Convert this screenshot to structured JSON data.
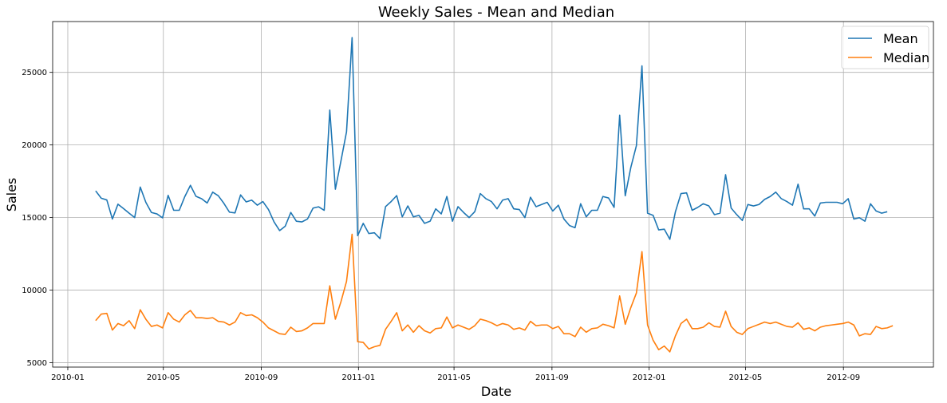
{
  "chart_data": {
    "type": "line",
    "title": "Weekly Sales - Mean and Median",
    "xlabel": "Date",
    "ylabel": "Sales",
    "grid": true,
    "legend_position": "top-right",
    "xlim": [
      "2009-12-13",
      "2012-12-23"
    ],
    "ylim": [
      4700,
      28500
    ],
    "x_ticks": [
      "2010-01",
      "2010-05",
      "2010-09",
      "2011-01",
      "2011-05",
      "2011-09",
      "2012-01",
      "2012-05",
      "2012-09"
    ],
    "y_ticks": [
      5000,
      10000,
      15000,
      20000,
      25000
    ],
    "x_start": "2010-02-05",
    "x_step_days": 7,
    "series": [
      {
        "name": "Mean",
        "color": "#1f77b4",
        "values": [
          16837,
          16330,
          16212,
          14900,
          15920,
          15620,
          15300,
          15000,
          17100,
          16050,
          15350,
          15250,
          14980,
          16530,
          15500,
          15500,
          16450,
          17220,
          16460,
          16300,
          16000,
          16750,
          16500,
          15980,
          15370,
          15320,
          16560,
          16080,
          16200,
          15850,
          16100,
          15550,
          14700,
          14100,
          14400,
          15350,
          14750,
          14700,
          14900,
          15650,
          15740,
          15500,
          22400,
          16950,
          18900,
          20900,
          27400,
          13750,
          14600,
          13900,
          13950,
          13550,
          15750,
          16100,
          16510,
          15050,
          15800,
          15050,
          15150,
          14600,
          14750,
          15600,
          15250,
          16450,
          14750,
          15750,
          15350,
          15000,
          15400,
          16650,
          16300,
          16100,
          15600,
          16200,
          16300,
          15600,
          15550,
          15000,
          16400,
          15750,
          15900,
          16050,
          15450,
          15850,
          14900,
          14450,
          14300,
          15950,
          15050,
          15500,
          15500,
          16450,
          16350,
          15700,
          22050,
          16500,
          18450,
          19950,
          25450,
          15300,
          15150,
          14150,
          14200,
          13500,
          15400,
          16650,
          16700,
          15500,
          15700,
          15950,
          15800,
          15200,
          15300,
          17950,
          15650,
          15200,
          14800,
          15900,
          15800,
          15900,
          16250,
          16450,
          16750,
          16300,
          16100,
          15850,
          17300,
          15600,
          15600,
          15100,
          16000,
          16050,
          16050,
          16050,
          15950,
          16300,
          14900,
          14990,
          14750,
          15950,
          15450,
          15300,
          15400
        ]
      },
      {
        "name": "Median",
        "color": "#ff7f0e",
        "values": [
          7900,
          8350,
          8400,
          7250,
          7700,
          7550,
          7900,
          7350,
          8650,
          8000,
          7500,
          7600,
          7400,
          8450,
          8000,
          7800,
          8300,
          8600,
          8100,
          8100,
          8050,
          8100,
          7850,
          7800,
          7600,
          7800,
          8450,
          8250,
          8300,
          8100,
          7800,
          7400,
          7200,
          7000,
          6950,
          7450,
          7150,
          7200,
          7400,
          7700,
          7700,
          7700,
          10300,
          8000,
          9200,
          10600,
          13850,
          6450,
          6400,
          5950,
          6100,
          6200,
          7300,
          7850,
          8450,
          7200,
          7600,
          7100,
          7550,
          7200,
          7050,
          7350,
          7400,
          8150,
          7400,
          7600,
          7450,
          7300,
          7550,
          8000,
          7900,
          7750,
          7550,
          7700,
          7600,
          7300,
          7400,
          7250,
          7850,
          7550,
          7600,
          7600,
          7350,
          7500,
          7000,
          7000,
          6800,
          7450,
          7100,
          7350,
          7400,
          7650,
          7550,
          7400,
          9600,
          7650,
          8800,
          9800,
          12650,
          7600,
          6550,
          5900,
          6150,
          5750,
          6850,
          7700,
          8000,
          7350,
          7350,
          7450,
          7750,
          7500,
          7450,
          8550,
          7500,
          7100,
          6950,
          7350,
          7500,
          7650,
          7800,
          7700,
          7800,
          7650,
          7500,
          7450,
          7750,
          7300,
          7400,
          7200,
          7450,
          7550,
          7600,
          7650,
          7700,
          7800,
          7600,
          6850,
          7000,
          6950,
          7500,
          7350,
          7400,
          7550
        ]
      }
    ]
  }
}
